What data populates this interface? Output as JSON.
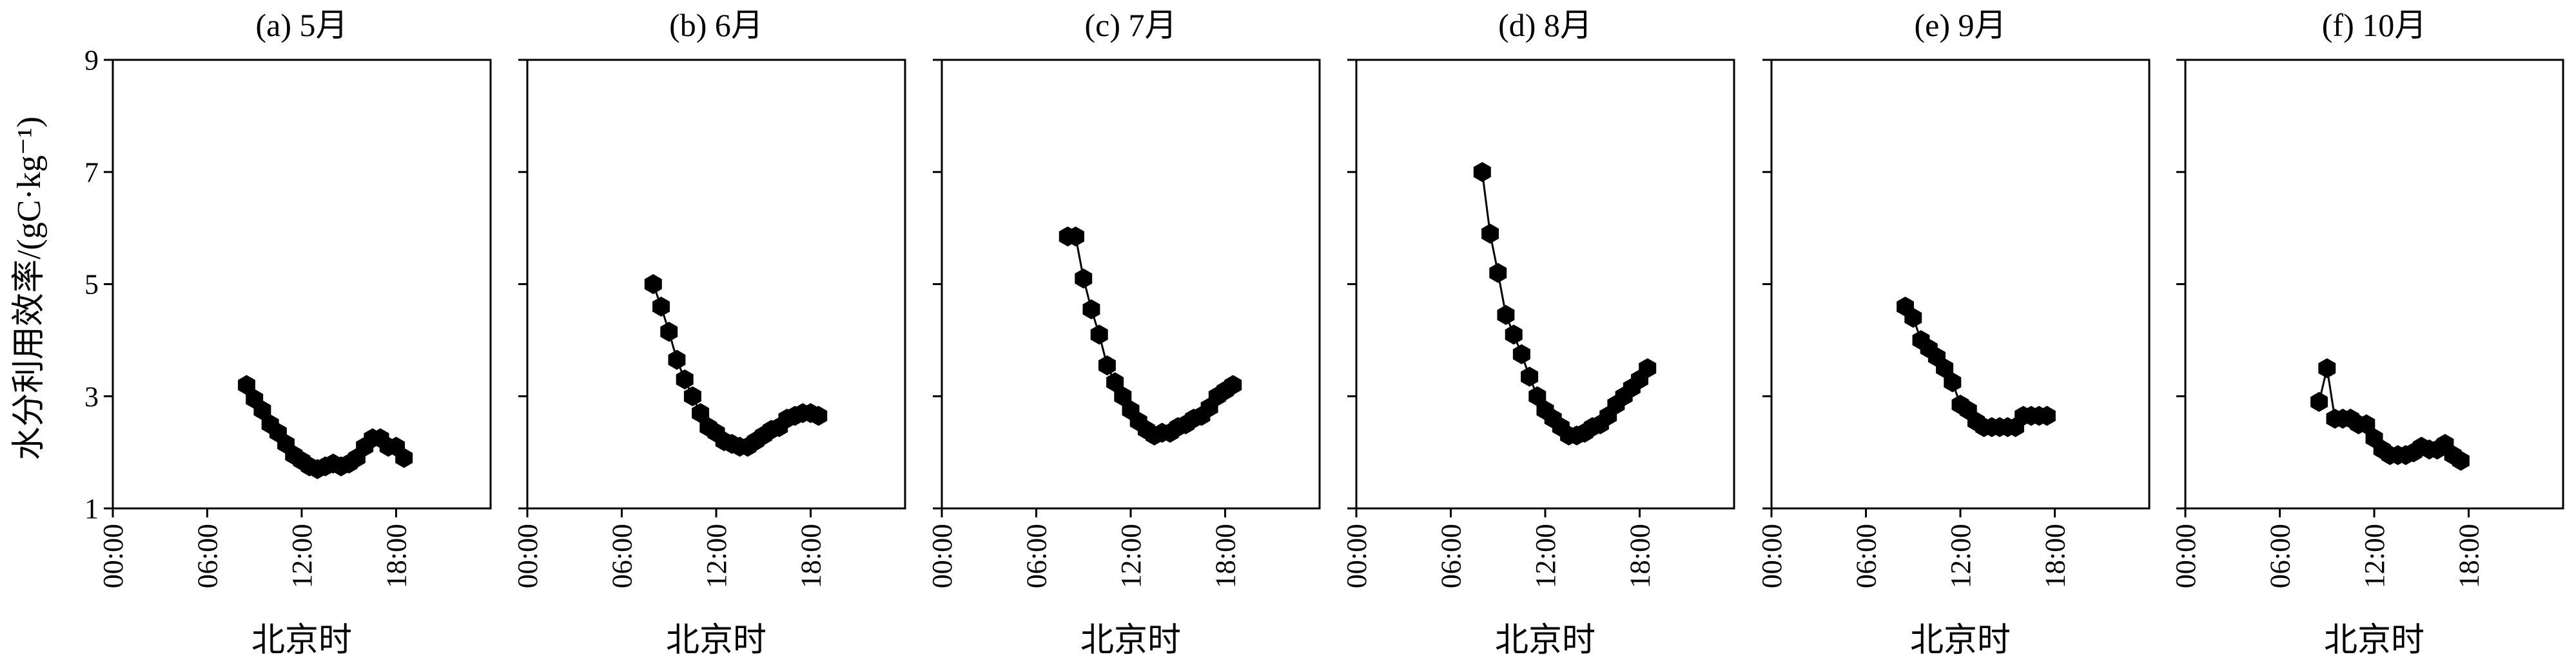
{
  "chart_data": {
    "type": "line",
    "ylabel": "水分利用效率/(gC·kg⁻¹)",
    "ylim": [
      1,
      9
    ],
    "yticks": [
      1,
      3,
      5,
      7,
      9
    ],
    "xlim": [
      0,
      24
    ],
    "xticks": [
      "00:00",
      "06:00",
      "12:00",
      "18:00"
    ],
    "xtick_hours": [
      0,
      6,
      12,
      18
    ],
    "xlabel": "北京时",
    "panels": [
      {
        "title": "(a) 5月",
        "x": [
          8.5,
          9.0,
          9.5,
          10.0,
          10.5,
          11.0,
          11.5,
          12.0,
          12.5,
          13.0,
          13.5,
          14.0,
          14.5,
          15.0,
          15.5,
          16.0,
          16.5,
          17.0,
          17.5,
          18.0,
          18.5
        ],
        "y": [
          3.2,
          2.95,
          2.75,
          2.5,
          2.35,
          2.15,
          1.95,
          1.85,
          1.75,
          1.7,
          1.75,
          1.8,
          1.75,
          1.8,
          1.9,
          2.1,
          2.25,
          2.25,
          2.1,
          2.1,
          1.9
        ]
      },
      {
        "title": "(b) 6月",
        "x": [
          8.0,
          8.5,
          9.0,
          9.5,
          10.0,
          10.5,
          11.0,
          11.5,
          12.0,
          12.5,
          13.0,
          13.5,
          14.0,
          14.5,
          15.0,
          15.5,
          16.0,
          16.5,
          17.0,
          17.5,
          18.0,
          18.5
        ],
        "y": [
          5.0,
          4.6,
          4.15,
          3.65,
          3.3,
          3.0,
          2.7,
          2.45,
          2.35,
          2.2,
          2.15,
          2.1,
          2.1,
          2.2,
          2.3,
          2.4,
          2.45,
          2.6,
          2.65,
          2.7,
          2.7,
          2.65
        ]
      },
      {
        "title": "(c) 7月",
        "x": [
          8.0,
          8.5,
          9.0,
          9.5,
          10.0,
          10.5,
          11.0,
          11.5,
          12.0,
          12.5,
          13.0,
          13.5,
          14.0,
          14.5,
          15.0,
          15.5,
          16.0,
          16.5,
          17.0,
          17.5,
          18.0,
          18.5
        ],
        "y": [
          5.85,
          5.85,
          5.1,
          4.55,
          4.1,
          3.55,
          3.25,
          3.0,
          2.75,
          2.55,
          2.4,
          2.3,
          2.35,
          2.35,
          2.45,
          2.5,
          2.6,
          2.65,
          2.8,
          3.0,
          3.1,
          3.2
        ]
      },
      {
        "title": "(d) 8月",
        "x": [
          8.0,
          8.5,
          9.0,
          9.5,
          10.0,
          10.5,
          11.0,
          11.5,
          12.0,
          12.5,
          13.0,
          13.5,
          14.0,
          14.5,
          15.0,
          15.5,
          16.0,
          16.5,
          17.0,
          17.5,
          18.0,
          18.5
        ],
        "y": [
          7.0,
          5.9,
          5.2,
          4.45,
          4.1,
          3.75,
          3.35,
          3.0,
          2.75,
          2.6,
          2.45,
          2.3,
          2.3,
          2.35,
          2.45,
          2.5,
          2.65,
          2.85,
          3.0,
          3.15,
          3.3,
          3.5
        ]
      },
      {
        "title": "(e) 9月",
        "x": [
          8.5,
          9.0,
          9.5,
          10.0,
          10.5,
          11.0,
          11.5,
          12.0,
          12.5,
          13.0,
          13.5,
          14.0,
          14.5,
          15.0,
          15.5,
          16.0,
          16.5,
          17.0,
          17.5
        ],
        "y": [
          4.6,
          4.4,
          4.0,
          3.85,
          3.7,
          3.5,
          3.25,
          2.85,
          2.75,
          2.55,
          2.45,
          2.45,
          2.45,
          2.45,
          2.45,
          2.65,
          2.65,
          2.65,
          2.65
        ]
      },
      {
        "title": "(f) 10月",
        "x": [
          8.5,
          9.0,
          9.5,
          10.0,
          10.5,
          11.0,
          11.5,
          12.0,
          12.5,
          13.0,
          13.5,
          14.0,
          14.5,
          15.0,
          15.5,
          16.0,
          16.5,
          17.0,
          17.5
        ],
        "y": [
          2.9,
          3.5,
          2.6,
          2.6,
          2.6,
          2.5,
          2.5,
          2.25,
          2.05,
          1.95,
          1.95,
          1.95,
          2.0,
          2.1,
          2.05,
          2.05,
          2.15,
          1.95,
          1.85
        ]
      }
    ]
  }
}
